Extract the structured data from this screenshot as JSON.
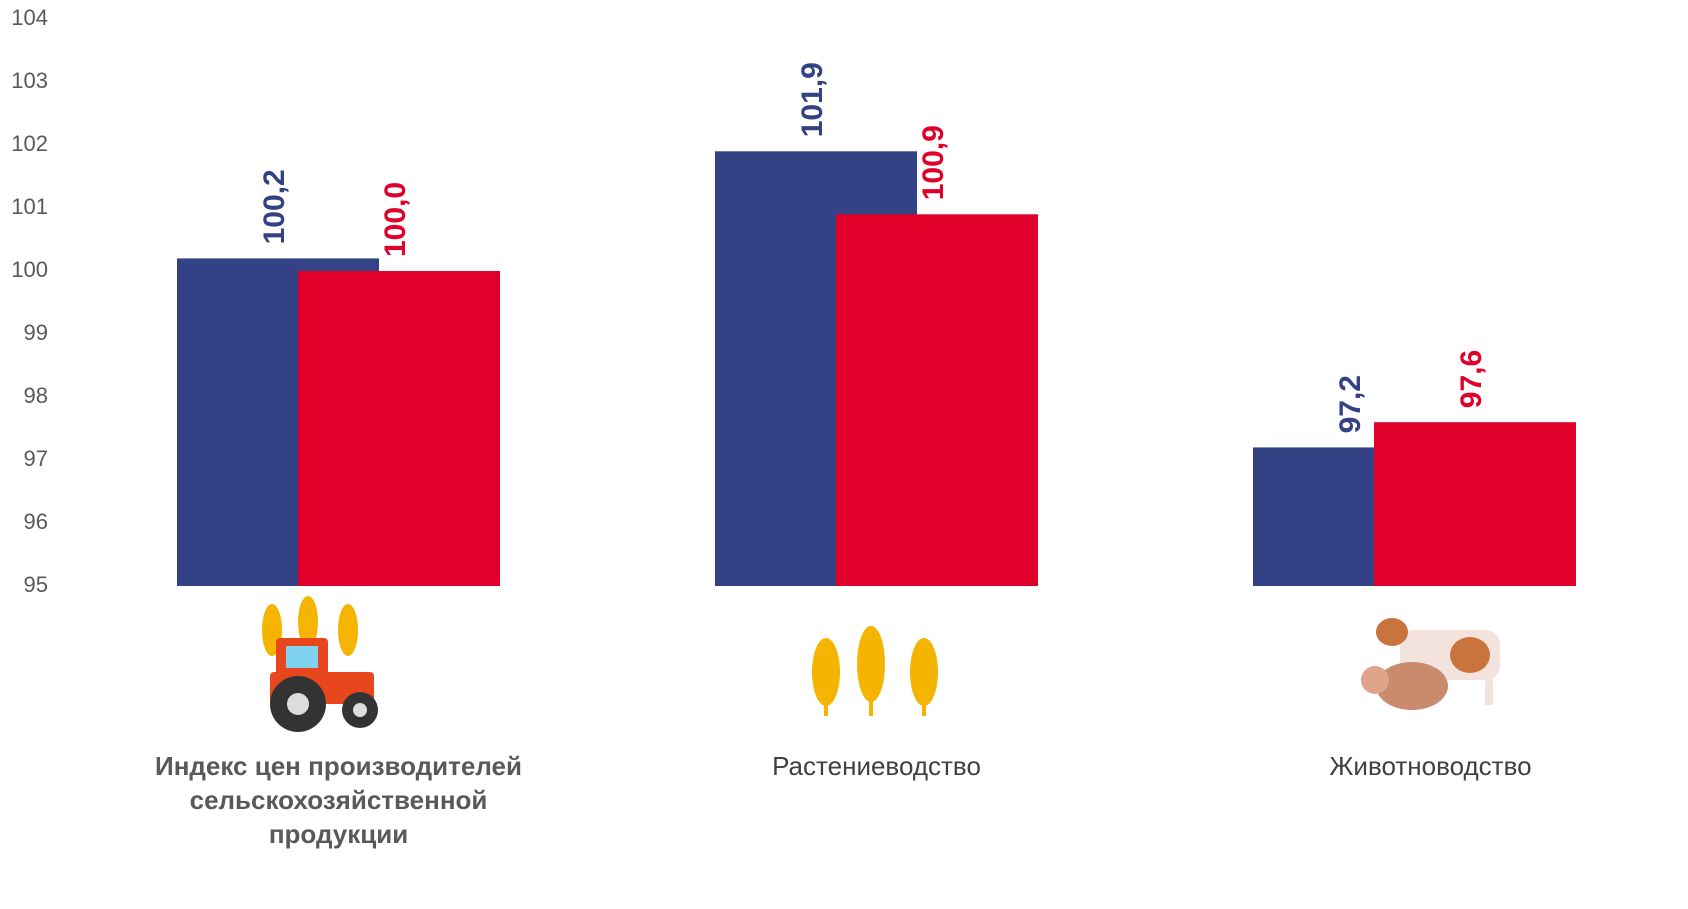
{
  "chart_data": {
    "type": "bar",
    "categories": [
      "Индекс цен производителей сельскохозяйственной продукции",
      "Растениеводство",
      "Животноводство"
    ],
    "series": [
      {
        "color": "#334185",
        "values": [
          100.2,
          101.9,
          97.2
        ],
        "value_labels": [
          "100,2",
          "101,9",
          "97,2"
        ]
      },
      {
        "color": "#e0002a",
        "values": [
          100.0,
          100.9,
          97.6
        ],
        "value_labels": [
          "100,0",
          "100,9",
          "97,6"
        ]
      }
    ],
    "ylim": [
      95,
      104
    ],
    "yticks": [
      95,
      96,
      97,
      98,
      99,
      100,
      101,
      102,
      103,
      104
    ],
    "grid": false
  }
}
